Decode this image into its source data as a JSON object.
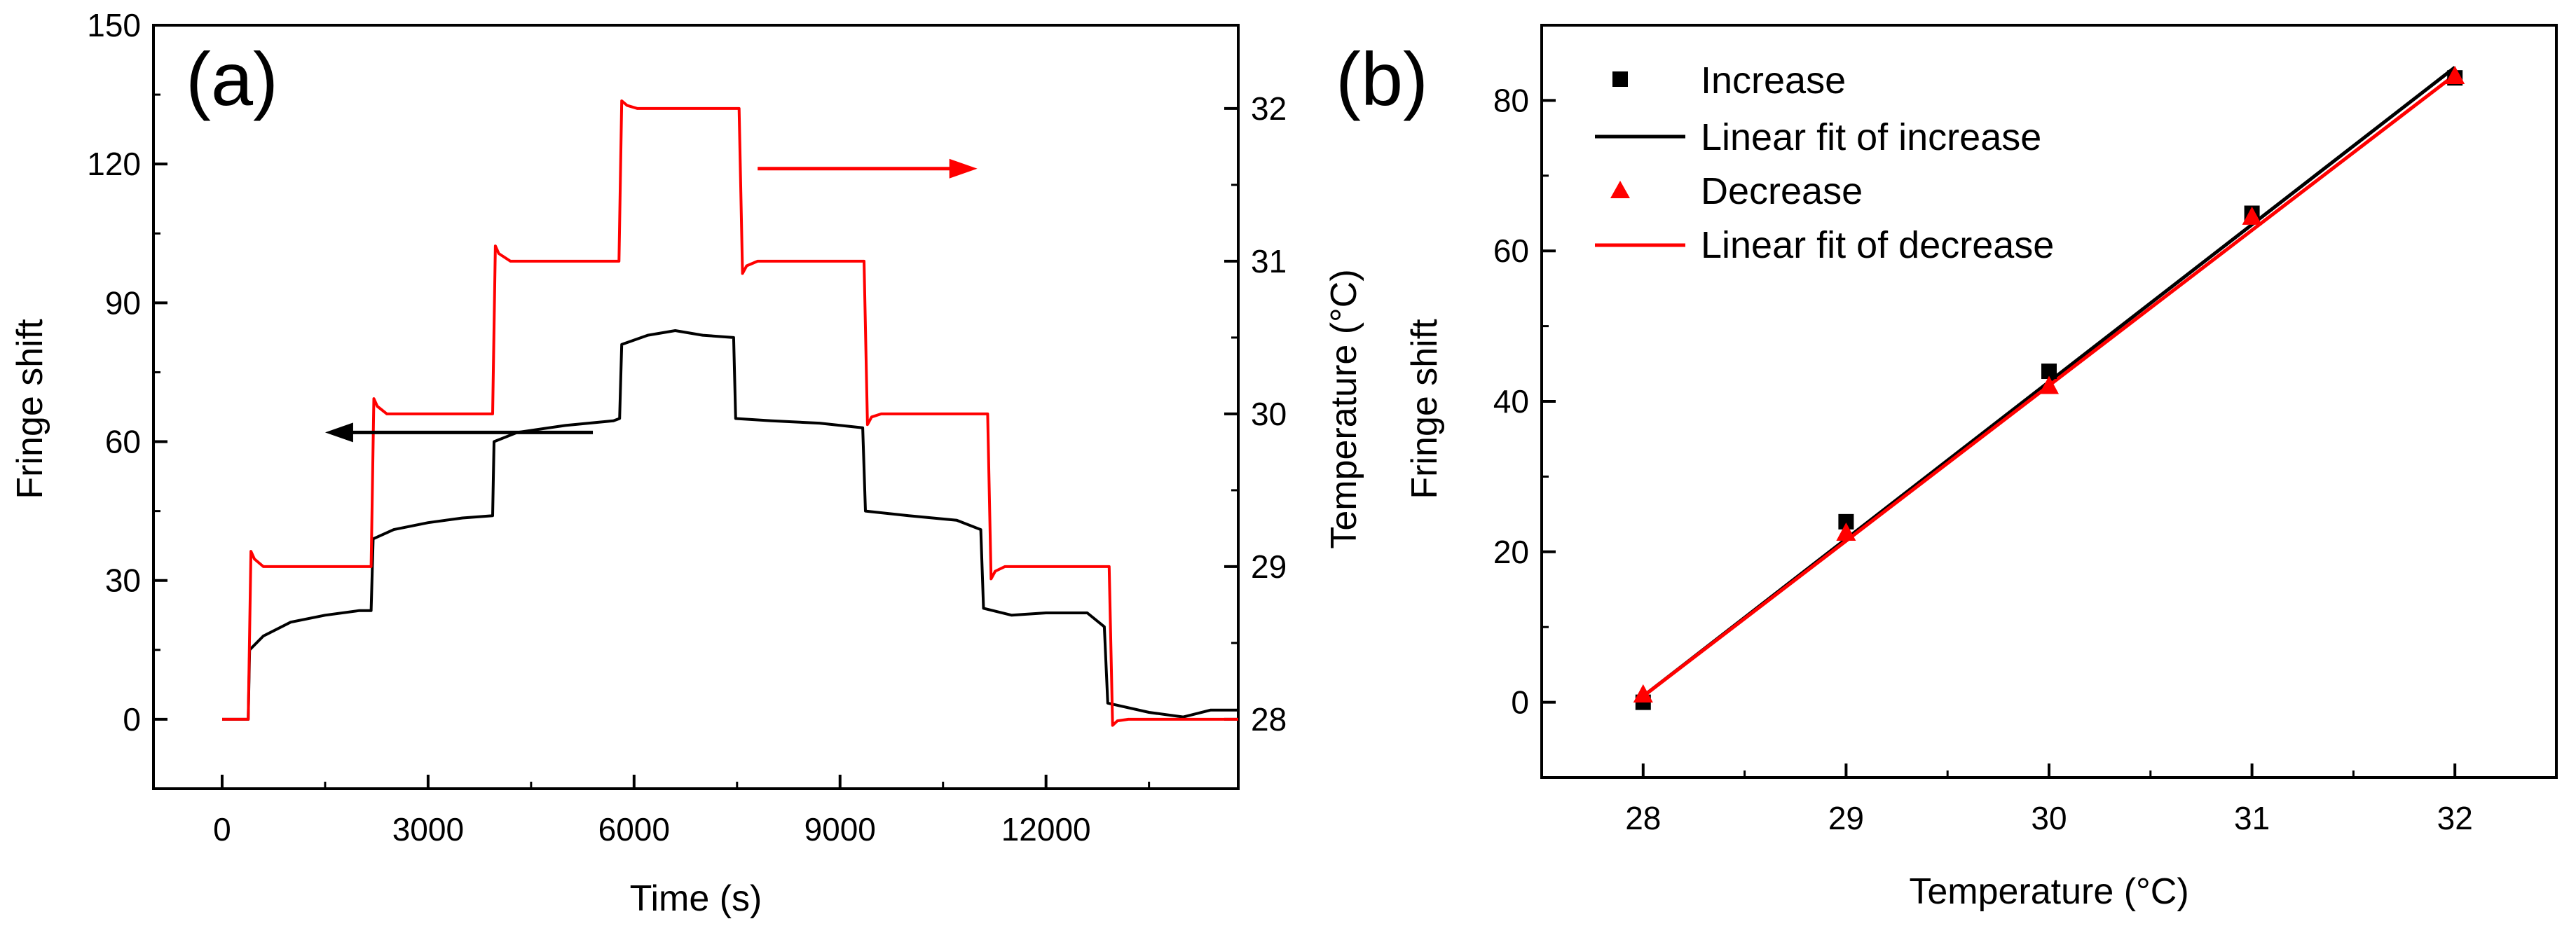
{
  "chart_data": [
    {
      "panel": "(a)",
      "type": "line",
      "title": "",
      "xlabel": "Time (s)",
      "ylabel_left": "Fringe shift",
      "ylabel_right": "Temperature (°C)",
      "xlim": [
        -1000,
        14800
      ],
      "ylim_left": [
        -15,
        150
      ],
      "ylim_right": [
        27.5455,
        32.5455
      ],
      "x_ticks": [
        0,
        3000,
        6000,
        9000,
        12000
      ],
      "x_tick_labels": [
        "0",
        "3000",
        "6000",
        "9000",
        "12000"
      ],
      "y_ticks_left": [
        0,
        30,
        60,
        90,
        120,
        150
      ],
      "y_tick_labels_left": [
        "0",
        "30",
        "60",
        "90",
        "120",
        "150"
      ],
      "y_ticks_right": [
        28,
        29,
        30,
        31,
        32
      ],
      "y_tick_labels_right": [
        "28",
        "29",
        "30",
        "31",
        "32"
      ],
      "grid": false,
      "series": [
        {
          "axis": "left",
          "color": "#000000",
          "points": [
            [
              0,
              0
            ],
            [
              380,
              0
            ],
            [
              400,
              15
            ],
            [
              600,
              18
            ],
            [
              1000,
              21
            ],
            [
              1500,
              22.5
            ],
            [
              2000,
              23.5
            ],
            [
              2170,
              23.5
            ],
            [
              2200,
              39
            ],
            [
              2500,
              41
            ],
            [
              3000,
              42.5
            ],
            [
              3500,
              43.5
            ],
            [
              3940,
              44
            ],
            [
              3960,
              60
            ],
            [
              4300,
              62
            ],
            [
              5000,
              63.5
            ],
            [
              5700,
              64.5
            ],
            [
              5790,
              65
            ],
            [
              5820,
              81
            ],
            [
              6200,
              83
            ],
            [
              6600,
              84
            ],
            [
              7000,
              83
            ],
            [
              7450,
              82.5
            ],
            [
              7480,
              65
            ],
            [
              8000,
              64.5
            ],
            [
              8700,
              64
            ],
            [
              9330,
              63
            ],
            [
              9370,
              45
            ],
            [
              10000,
              44
            ],
            [
              10700,
              43
            ],
            [
              11050,
              41
            ],
            [
              11090,
              24
            ],
            [
              11500,
              22.5
            ],
            [
              12000,
              23
            ],
            [
              12600,
              23
            ],
            [
              12850,
              20
            ],
            [
              12900,
              3.5
            ],
            [
              13500,
              1.5
            ],
            [
              14000,
              0.5
            ],
            [
              14400,
              2
            ],
            [
              14800,
              2
            ]
          ]
        },
        {
          "axis": "right",
          "color": "#ff0000",
          "points": [
            [
              0,
              28
            ],
            [
              380,
              28
            ],
            [
              420,
              29.1
            ],
            [
              470,
              29.05
            ],
            [
              600,
              29
            ],
            [
              2170,
              29
            ],
            [
              2210,
              30.1
            ],
            [
              2260,
              30.05
            ],
            [
              2400,
              30
            ],
            [
              3940,
              30
            ],
            [
              3980,
              31.1
            ],
            [
              4030,
              31.05
            ],
            [
              4200,
              31
            ],
            [
              5780,
              31
            ],
            [
              5820,
              32.05
            ],
            [
              5900,
              32.02
            ],
            [
              6050,
              32
            ],
            [
              7530,
              32
            ],
            [
              7580,
              30.92
            ],
            [
              7640,
              30.97
            ],
            [
              7800,
              31
            ],
            [
              9350,
              31
            ],
            [
              9400,
              29.93
            ],
            [
              9460,
              29.98
            ],
            [
              9600,
              30
            ],
            [
              11150,
              30
            ],
            [
              11200,
              28.92
            ],
            [
              11260,
              28.97
            ],
            [
              11400,
              29
            ],
            [
              12920,
              29
            ],
            [
              12970,
              27.96
            ],
            [
              13040,
              27.99
            ],
            [
              13200,
              28
            ],
            [
              14800,
              28
            ]
          ]
        }
      ],
      "annotations": [
        {
          "type": "arrow",
          "color": "#000000",
          "axis": "left",
          "from": [
            5400,
            62
          ],
          "to": [
            1500,
            62
          ],
          "meaning": "black curve uses left axis"
        },
        {
          "type": "arrow",
          "color": "#ff0000",
          "axis": "left",
          "from": [
            7800,
            119
          ],
          "to": [
            11000,
            119
          ],
          "meaning": "red curve uses right axis"
        }
      ]
    },
    {
      "panel": "(b)",
      "type": "scatter",
      "title": "",
      "xlabel": "Temperature (°C)",
      "ylabel": "Fringe shift",
      "xlim": [
        27.5,
        32.5
      ],
      "ylim": [
        -10,
        90
      ],
      "x_ticks": [
        28,
        29,
        30,
        31,
        32
      ],
      "x_tick_labels": [
        "28",
        "29",
        "30",
        "31",
        "32"
      ],
      "y_ticks": [
        0,
        20,
        40,
        60,
        80
      ],
      "y_tick_labels": [
        "0",
        "20",
        "40",
        "60",
        "80"
      ],
      "grid": false,
      "legend": "top-left",
      "series": [
        {
          "name": "Increase",
          "kind": "points",
          "marker": "square",
          "color": "#000000",
          "x": [
            28,
            29,
            30,
            31,
            32
          ],
          "y": [
            0,
            24,
            44,
            65,
            83
          ]
        },
        {
          "name": "Linear fit of increase",
          "kind": "line",
          "color": "#000000",
          "x": [
            28,
            32
          ],
          "y": [
            0.8,
            84.4
          ]
        },
        {
          "name": "Decrease",
          "kind": "points",
          "marker": "triangle",
          "color": "#ff0000",
          "x": [
            28,
            29,
            30,
            31,
            32
          ],
          "y": [
            1,
            22.5,
            42,
            64.5,
            83.2
          ]
        },
        {
          "name": "Linear fit of decrease",
          "kind": "line",
          "color": "#ff0000",
          "x": [
            28,
            32
          ],
          "y": [
            0.8,
            83.4
          ]
        }
      ]
    }
  ]
}
